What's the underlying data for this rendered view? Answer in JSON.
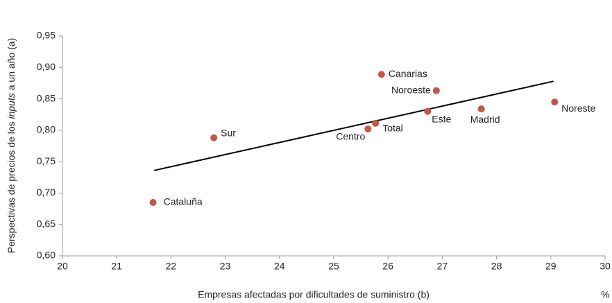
{
  "chart_data": {
    "type": "scatter",
    "labels": [
      "Cataluña",
      "Sur",
      "Centro",
      "Total",
      "Canarias",
      "Noroeste",
      "Este",
      "Madrid",
      "Noreste"
    ],
    "x": [
      21.67,
      22.79,
      25.63,
      25.77,
      25.88,
      26.89,
      26.73,
      27.72,
      29.07
    ],
    "y": [
      0.685,
      0.788,
      0.802,
      0.811,
      0.889,
      0.863,
      0.83,
      0.834,
      0.845
    ],
    "color": "#c0574a",
    "trend": {
      "x": [
        21.69,
        29.05
      ],
      "y": [
        0.736,
        0.878
      ],
      "color": "#000000"
    },
    "x_label": "Empresas afectadas por dificultades de suministro (b)",
    "x_unit": "%",
    "y_label": [
      "Perspectivas de precios de los ",
      "inputs",
      " a un año (a)"
    ],
    "xlim": [
      20,
      30
    ],
    "xticks": [
      20,
      21,
      22,
      23,
      24,
      25,
      26,
      27,
      28,
      29,
      30
    ],
    "ylim": [
      0.6,
      0.95
    ],
    "yticks": [
      {
        "value": 0.6,
        "label": "0,60"
      },
      {
        "value": 0.65,
        "label": "0,65"
      },
      {
        "value": 0.7,
        "label": "0,70"
      },
      {
        "value": 0.75,
        "label": "0,75"
      },
      {
        "value": 0.8,
        "label": "0,80"
      },
      {
        "value": 0.85,
        "label": "0,85"
      },
      {
        "value": 0.9,
        "label": "0,90"
      },
      {
        "value": 0.95,
        "label": "0,95"
      }
    ],
    "grid": false
  }
}
